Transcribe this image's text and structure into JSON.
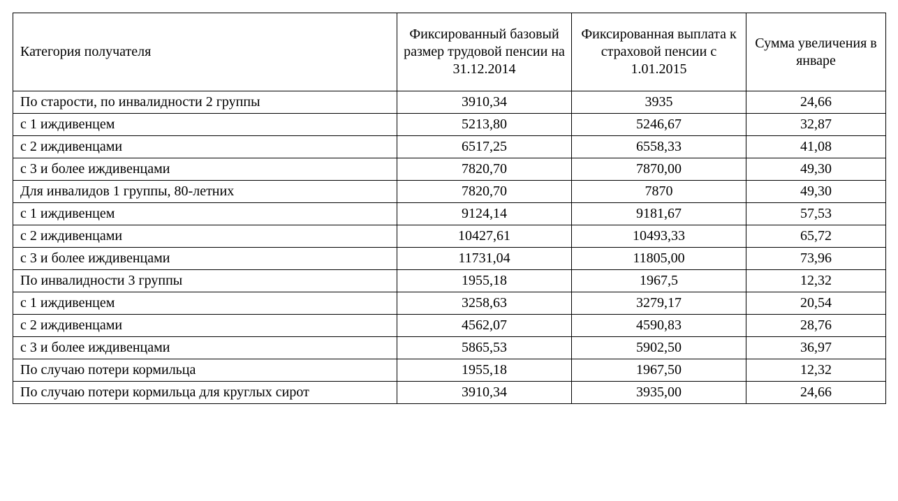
{
  "table": {
    "columns": [
      "Категория получателя",
      "Фиксированный базовый размер трудовой пенсии на 31.12.2014",
      "Фиксированная выплата к страховой пенсии с 1.01.2015",
      "Сумма увеличения в январе"
    ],
    "rows": [
      {
        "label": "По старости, по инвалидности 2 группы",
        "v1": "3910,34",
        "v2": "3935",
        "v3": "24,66"
      },
      {
        "label": "с 1 иждивенцем",
        "v1": "5213,80",
        "v2": "5246,67",
        "v3": "32,87"
      },
      {
        "label": "с 2 иждивенцами",
        "v1": "6517,25",
        "v2": "6558,33",
        "v3": "41,08"
      },
      {
        "label": "с 3 и более иждивенцами",
        "v1": "7820,70",
        "v2": "7870,00",
        "v3": "49,30"
      },
      {
        "label": "Для инвалидов 1 группы, 80-летних",
        "v1": "7820,70",
        "v2": "7870",
        "v3": "49,30"
      },
      {
        "label": "с 1 иждивенцем",
        "v1": "9124,14",
        "v2": "9181,67",
        "v3": "57,53"
      },
      {
        "label": "с 2 иждивенцами",
        "v1": "10427,61",
        "v2": "10493,33",
        "v3": "65,72"
      },
      {
        "label": "с 3 и более иждивенцами",
        "v1": "11731,04",
        "v2": "11805,00",
        "v3": "73,96"
      },
      {
        "label": "По инвалидности 3 группы",
        "v1": "1955,18",
        "v2": "1967,5",
        "v3": "12,32"
      },
      {
        "label": "с 1 иждивенцем",
        "v1": "3258,63",
        "v2": "3279,17",
        "v3": "20,54"
      },
      {
        "label": "с 2 иждивенцами",
        "v1": "4562,07",
        "v2": "4590,83",
        "v3": "28,76"
      },
      {
        "label": "с 3 и более иждивенцами",
        "v1": "5865,53",
        "v2": "5902,50",
        "v3": "36,97"
      },
      {
        "label": "По случаю потери кормильца",
        "v1": "1955,18",
        "v2": "1967,50",
        "v3": "12,32"
      },
      {
        "label": "По случаю потери кормильца для круглых сирот",
        "v1": "3910,34",
        "v2": "3935,00",
        "v3": "24,66"
      }
    ],
    "col_align": [
      "left",
      "center",
      "center",
      "center"
    ],
    "font_family": "Times New Roman",
    "font_size_pt": 15,
    "border_color": "#000000",
    "background_color": "#ffffff",
    "text_color": "#000000"
  }
}
